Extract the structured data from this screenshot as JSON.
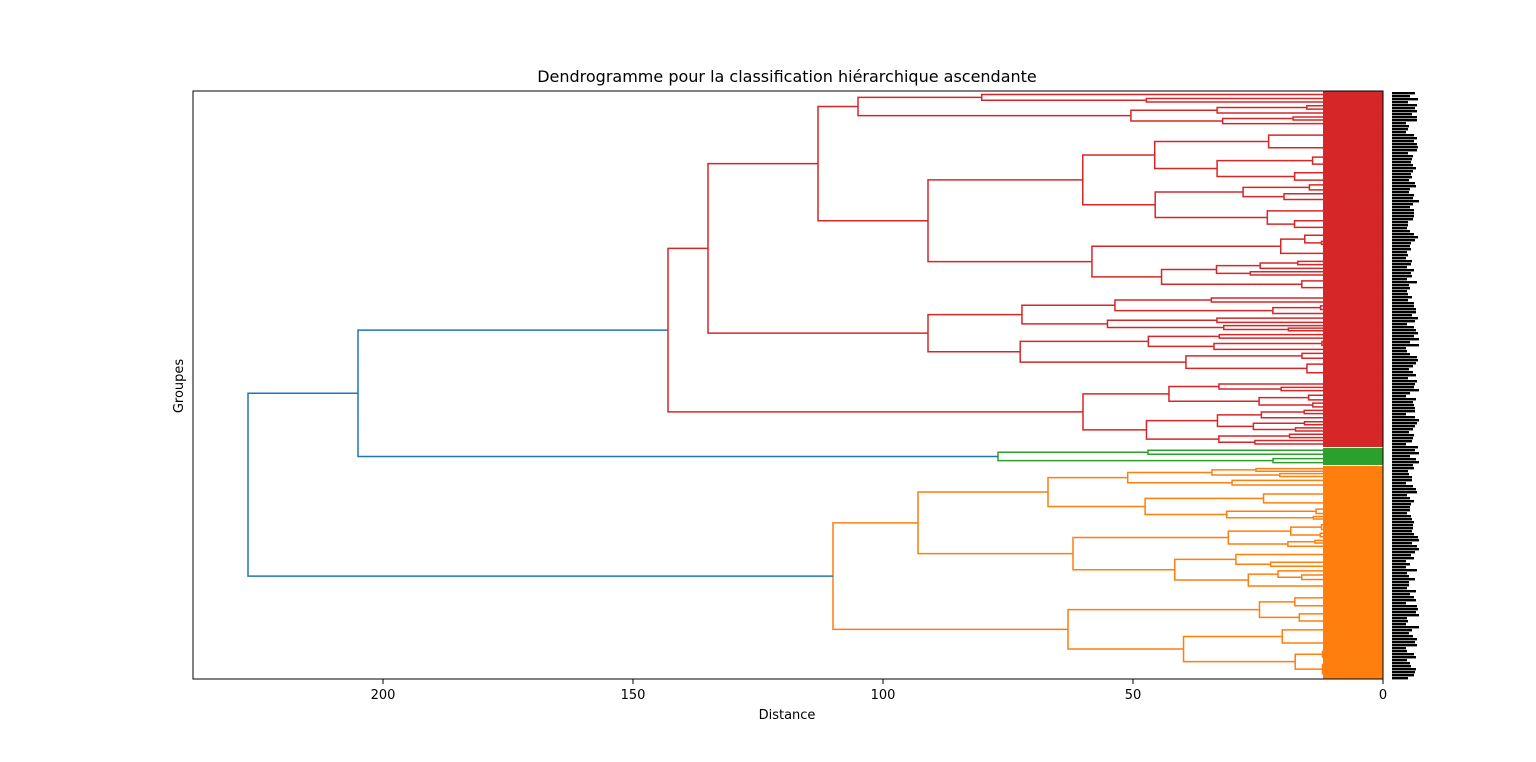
{
  "chart_data": {
    "type": "dendrogram",
    "orientation": "left",
    "title": "Dendrogramme pour la classification hiérarchique ascendante",
    "xlabel": "Distance",
    "ylabel": "Groupes",
    "xlim": [
      238,
      0
    ],
    "x_ticks": [
      200,
      150,
      100,
      50,
      0
    ],
    "grid": false,
    "leaf_labels_legible": false,
    "colors": {
      "above_threshold": "#1f77b4",
      "cluster_1": "#d62728",
      "cluster_2": "#2ca02c",
      "cluster_3": "#ff7f0e",
      "axis": "#000000"
    },
    "clusters": [
      {
        "name": "cluster_1",
        "color": "#d62728",
        "top_merge_distance": 143,
        "internal_merges": [
          {
            "distance": 143,
            "joins": "subcluster_A + subcluster_B"
          },
          {
            "distance": 135,
            "joins": "subcluster_A1 + subcluster_A2"
          },
          {
            "distance": 113,
            "joins": "subcluster_A1a + subcluster_A1b"
          },
          {
            "distance": 105,
            "joins": "two leaf groups"
          },
          {
            "distance": 91,
            "joins": "two leaf groups"
          },
          {
            "distance": 91,
            "joins": "subcluster_A2 children"
          },
          {
            "distance": 74,
            "joins": "two leaf groups"
          },
          {
            "distance": 76,
            "joins": "two leaf groups"
          },
          {
            "distance": 60,
            "joins": "subcluster_B children"
          },
          {
            "distance": 49,
            "joins": "two leaf groups"
          },
          {
            "distance": 65,
            "joins": "two leaf groups"
          },
          {
            "distance": 52,
            "joins": "two leaf groups"
          }
        ]
      },
      {
        "name": "cluster_2",
        "color": "#2ca02c",
        "top_merge_distance": 77,
        "internal_merges": [
          {
            "distance": 77,
            "joins": "two leaf groups"
          },
          {
            "distance": 47,
            "joins": "leaves"
          }
        ]
      },
      {
        "name": "cluster_3",
        "color": "#ff7f0e",
        "top_merge_distance": 110,
        "internal_merges": [
          {
            "distance": 110,
            "joins": "subcluster_C + subcluster_D"
          },
          {
            "distance": 93,
            "joins": "subcluster_C children"
          },
          {
            "distance": 67,
            "joins": "two leaf groups"
          },
          {
            "distance": 62,
            "joins": "two leaf groups"
          },
          {
            "distance": 63,
            "joins": "subcluster_D children"
          },
          {
            "distance": 56,
            "joins": "two leaf groups"
          }
        ]
      }
    ],
    "upper_merges": [
      {
        "distance": 205,
        "joins": "cluster_1 + cluster_2",
        "color": "#1f77b4"
      },
      {
        "distance": 227,
        "joins": "(cluster_1 + cluster_2) + cluster_3",
        "color": "#1f77b4"
      }
    ]
  }
}
